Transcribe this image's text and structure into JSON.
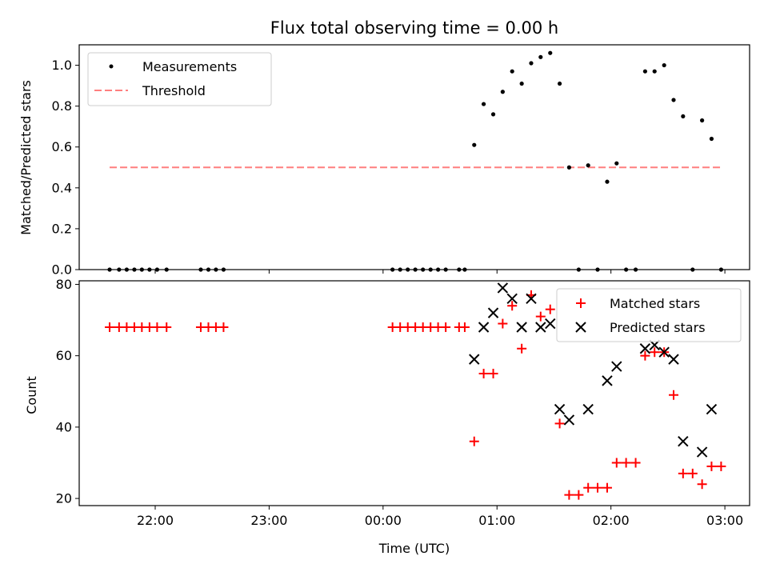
{
  "figure": {
    "title": "Flux total observing time = 0.00 h"
  },
  "colors": {
    "measurements": "#000000",
    "threshold": "#ff7f7f",
    "matched": "#ff0000",
    "predicted": "#000000"
  },
  "chart_data": [
    {
      "type": "scatter",
      "title": "Flux total observing time = 0.00 h",
      "xlabel": "",
      "ylabel": "Matched/Predicted stars",
      "x_unit": "hours relative to 00:00 UTC",
      "ylim": [
        0,
        1.1
      ],
      "yticks": [
        "0.0",
        "0.2",
        "0.4",
        "0.6",
        "0.8",
        "1.0"
      ],
      "legend_position": "upper-left",
      "grid": false,
      "series": [
        {
          "name": "Measurements",
          "marker": "dot",
          "x": [
            -2.4,
            -2.317,
            -2.25,
            -2.183,
            -2.117,
            -2.05,
            -1.983,
            -1.9,
            -1.6,
            -1.533,
            -1.467,
            -1.4,
            0.083,
            0.15,
            0.217,
            0.283,
            0.35,
            0.417,
            0.483,
            0.55,
            0.667,
            0.717,
            0.8,
            0.883,
            0.967,
            1.05,
            1.133,
            1.217,
            1.3,
            1.383,
            1.467,
            1.55,
            1.633,
            1.717,
            1.8,
            1.883,
            1.967,
            2.05,
            2.133,
            2.217,
            2.3,
            2.383,
            2.467,
            2.55,
            2.633,
            2.717,
            2.8,
            2.883,
            2.967
          ],
          "y": [
            0,
            0,
            0,
            0,
            0,
            0,
            0,
            0,
            0,
            0,
            0,
            0,
            0,
            0,
            0,
            0,
            0,
            0,
            0,
            0,
            0,
            0,
            0.61,
            0.81,
            0.76,
            0.87,
            0.97,
            0.91,
            1.01,
            1.04,
            1.06,
            0.91,
            0.5,
            0,
            0.51,
            0,
            0.43,
            0.52,
            0,
            0,
            0.97,
            0.97,
            1.0,
            0.83,
            0.75,
            0,
            0.73,
            0.64,
            0
          ]
        },
        {
          "name": "Threshold",
          "line": "dashed",
          "x": [
            -2.4,
            2.967
          ],
          "y": [
            0.5,
            0.5
          ]
        }
      ]
    },
    {
      "type": "scatter",
      "title": "",
      "xlabel": "Time (UTC)",
      "ylabel": "Count",
      "x_unit": "hours relative to 00:00 UTC",
      "xticks": [
        {
          "v": -2,
          "label": "22:00"
        },
        {
          "v": -1,
          "label": "23:00"
        },
        {
          "v": 0,
          "label": "00:00"
        },
        {
          "v": 1,
          "label": "01:00"
        },
        {
          "v": 2,
          "label": "02:00"
        },
        {
          "v": 3,
          "label": "03:00"
        }
      ],
      "xlim": [
        -2.667,
        3.217
      ],
      "ylim": [
        18,
        81
      ],
      "yticks": [
        "20",
        "40",
        "60",
        "80"
      ],
      "legend_position": "upper-right",
      "grid": false,
      "series": [
        {
          "name": "Matched stars",
          "marker": "plus",
          "x": [
            -2.4,
            -2.317,
            -2.25,
            -2.183,
            -2.117,
            -2.05,
            -1.983,
            -1.9,
            -1.6,
            -1.533,
            -1.467,
            -1.4,
            0.083,
            0.15,
            0.217,
            0.283,
            0.35,
            0.417,
            0.483,
            0.55,
            0.667,
            0.717,
            0.8,
            0.883,
            0.967,
            1.05,
            1.133,
            1.217,
            1.3,
            1.383,
            1.467,
            1.55,
            1.633,
            1.717,
            1.8,
            1.883,
            1.967,
            2.05,
            2.133,
            2.217,
            2.3,
            2.383,
            2.467,
            2.55,
            2.633,
            2.717,
            2.8,
            2.883,
            2.967
          ],
          "y": [
            68,
            68,
            68,
            68,
            68,
            68,
            68,
            68,
            68,
            68,
            68,
            68,
            68,
            68,
            68,
            68,
            68,
            68,
            68,
            68,
            68,
            68,
            36,
            55,
            55,
            69,
            74,
            62,
            77,
            71,
            73,
            41,
            21,
            21,
            23,
            23,
            23,
            30,
            30,
            30,
            60,
            61,
            61,
            49,
            27,
            27,
            24,
            29,
            29
          ]
        },
        {
          "name": "Predicted stars",
          "marker": "x",
          "x": [
            0.8,
            0.883,
            0.967,
            1.05,
            1.133,
            1.217,
            1.3,
            1.383,
            1.467,
            1.55,
            1.633,
            1.8,
            1.967,
            2.05,
            2.3,
            2.383,
            2.467,
            2.55,
            2.633,
            2.8,
            2.883
          ],
          "y": [
            59,
            68,
            72,
            79,
            76,
            68,
            76,
            68,
            69,
            45,
            42,
            45,
            53,
            57,
            62,
            63,
            61,
            59,
            36,
            33,
            45
          ]
        }
      ]
    }
  ]
}
